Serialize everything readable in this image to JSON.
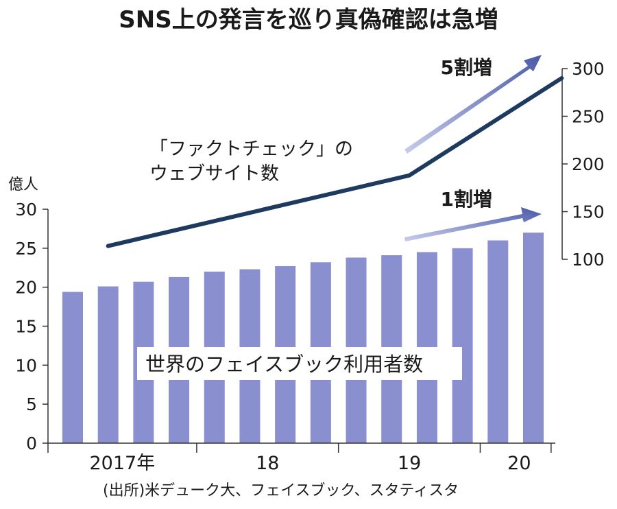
{
  "chart_data": {
    "type": "bar",
    "title": "SNS上の発言を巡り真偽確認は急増",
    "left_axis": {
      "unit": "億人",
      "ticks": [
        0,
        5,
        10,
        15,
        20,
        25,
        30
      ],
      "range": [
        0,
        30
      ]
    },
    "right_axis": {
      "ticks": [
        100,
        150,
        200,
        250,
        300
      ],
      "range": [
        100,
        300
      ]
    },
    "x_labels": [
      "2017年",
      "18",
      "19",
      "20"
    ],
    "series": [
      {
        "name": "世界のフェイスブック利用者数",
        "type": "bar",
        "axis": "left",
        "color": "#8a8fd0",
        "values": [
          19.4,
          20.1,
          20.7,
          21.3,
          22.0,
          22.3,
          22.7,
          23.2,
          23.8,
          24.1,
          24.5,
          25.0,
          26.0,
          27.0
        ]
      },
      {
        "name": "「ファクトチェック」のウェブサイト数",
        "type": "line",
        "axis": "right",
        "color": "#1e3a5f",
        "points": [
          {
            "bar_index": 1,
            "value": 114
          },
          {
            "bar_index": 9.5,
            "value": 188
          },
          {
            "bar_index": 13.8,
            "value": 290
          }
        ]
      }
    ],
    "annotations": [
      {
        "text": "5割増",
        "arrow_color": "#4a5aa8"
      },
      {
        "text": "1割増",
        "arrow_color": "#4a5aa8"
      }
    ],
    "source": "(出所)米デューク大、フェイスブック、スタティスタ"
  }
}
